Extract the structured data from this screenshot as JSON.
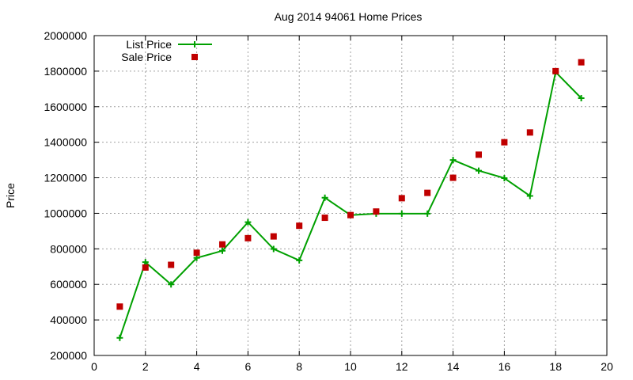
{
  "chart_data": {
    "type": "line",
    "title": "Aug 2014 94061 Home Prices",
    "xlabel": "",
    "ylabel": "Price",
    "xlim": [
      0,
      20
    ],
    "ylim": [
      200000,
      2000000
    ],
    "x_ticks": [
      0,
      2,
      4,
      6,
      8,
      10,
      12,
      14,
      16,
      18,
      20
    ],
    "y_ticks": [
      200000,
      400000,
      600000,
      800000,
      1000000,
      1200000,
      1400000,
      1600000,
      1800000,
      2000000
    ],
    "x_tick_labels": [
      "0",
      "2",
      "4",
      "6",
      "8",
      "10",
      "12",
      "14",
      "16",
      "18",
      "20"
    ],
    "y_tick_labels": [
      "200000",
      "400000",
      "600000",
      "800000",
      "1000000",
      "1200000",
      "1400000",
      "1600000",
      "1800000",
      "2000000"
    ],
    "grid": true,
    "legend_position": "top-left",
    "series": [
      {
        "name": "List Price",
        "style": "line-with-plus-markers",
        "color": "#00a000",
        "x": [
          1,
          2,
          3,
          4,
          5,
          6,
          7,
          8,
          9,
          10,
          11,
          12,
          13,
          14,
          15,
          16,
          17,
          18,
          19
        ],
        "values": [
          299000,
          725000,
          600000,
          749000,
          789000,
          950000,
          799000,
          735000,
          1088000,
          990000,
          998000,
          998000,
          998000,
          1300000,
          1240000,
          1198000,
          1098000,
          1795000,
          1648000
        ]
      },
      {
        "name": "Sale Price",
        "style": "square-markers",
        "color": "#c00000",
        "x": [
          1,
          2,
          3,
          4,
          5,
          6,
          7,
          8,
          9,
          10,
          11,
          12,
          13,
          14,
          15,
          16,
          17,
          18,
          19
        ],
        "values": [
          475000,
          695000,
          710000,
          778000,
          825000,
          860000,
          870000,
          930000,
          975000,
          990000,
          1010000,
          1085000,
          1115000,
          1200000,
          1330000,
          1400000,
          1455000,
          1800000,
          1850000
        ]
      }
    ]
  }
}
